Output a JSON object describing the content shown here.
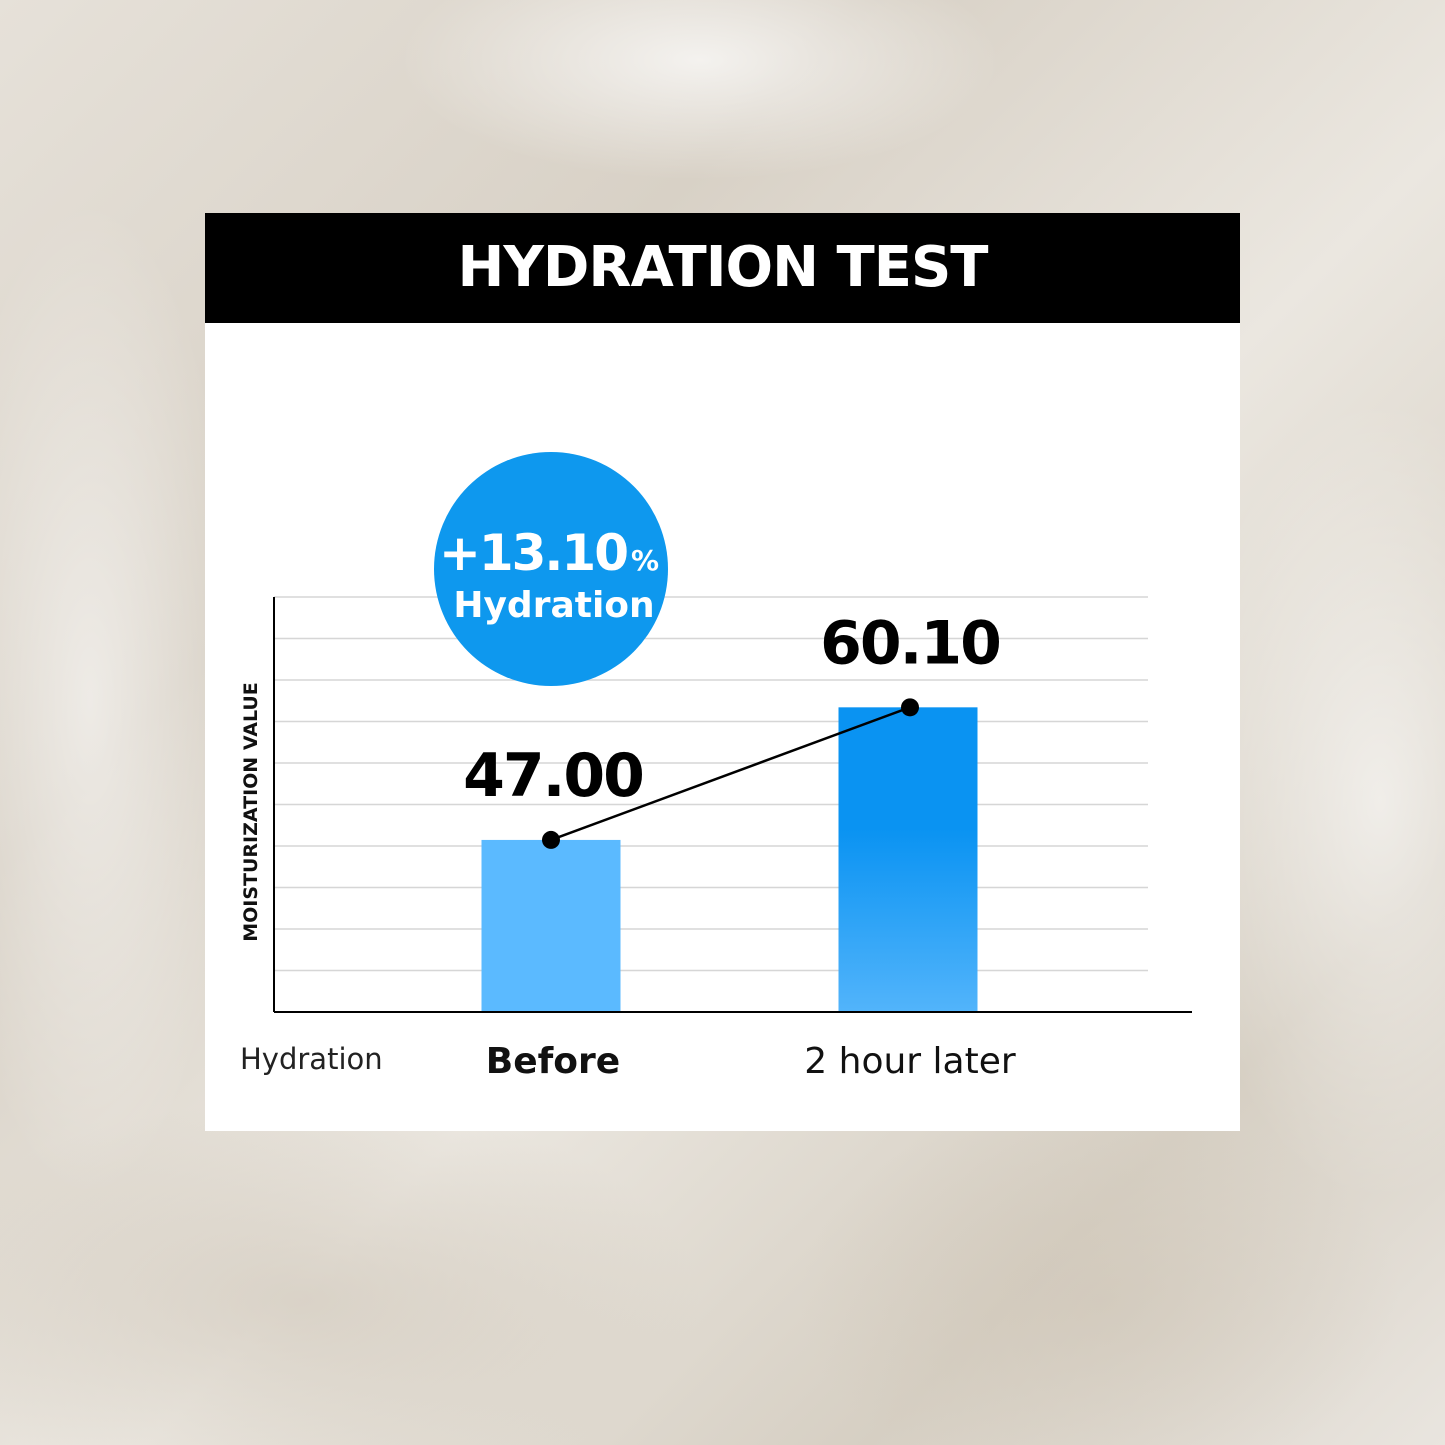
{
  "colors": {
    "header_bg": "#000000",
    "bar_before": "#5bbaff",
    "bar_after": "#0a93f2",
    "badge": "#0e98ee",
    "line": "#000000",
    "grid": "#d6d6d6"
  },
  "chart_data": {
    "type": "bar",
    "title": "HYDRATION TEST",
    "xlabel": "Hydration",
    "ylabel": "MOISTURIZATION VALUE",
    "categories": [
      "Before",
      "2 hour later"
    ],
    "values": [
      47.0,
      60.1
    ],
    "value_labels": [
      "47.00",
      "60.10"
    ],
    "ylim": [
      30,
      71
    ],
    "grid": true,
    "connecting_line": true,
    "badge": {
      "value": "+13.10",
      "unit": "%",
      "label": "Hydration"
    }
  }
}
